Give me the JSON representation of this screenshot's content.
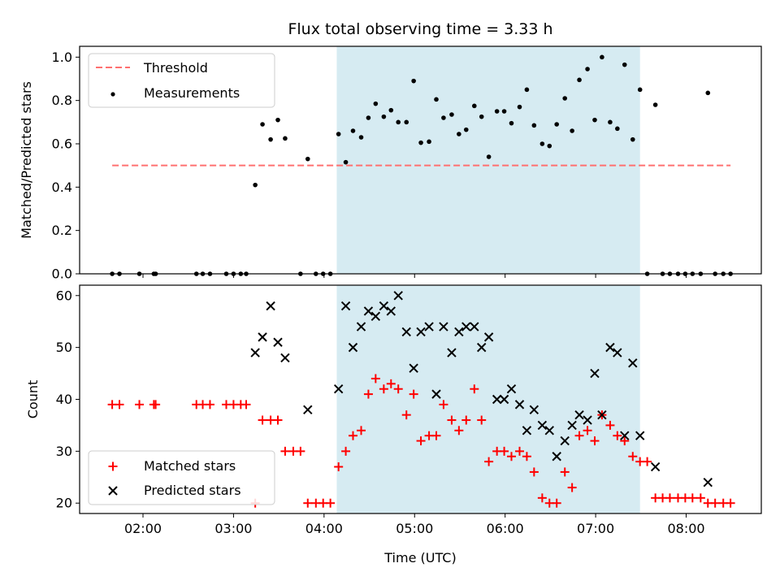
{
  "chart_data": [
    {
      "type": "scatter",
      "title": "Flux total observing time = 3.33 h",
      "xlabel": "",
      "ylabel": "Matched/Predicted stars",
      "ylim": [
        0,
        1.05
      ],
      "yticks": [
        "0.0",
        "0.2",
        "0.4",
        "0.6",
        "0.8",
        "1.0"
      ],
      "ytick_values": [
        0,
        0.2,
        0.4,
        0.6,
        0.8,
        1.0
      ],
      "xlim": [
        1.3,
        8.83
      ],
      "shaded_region": {
        "x_start": 4.14,
        "x_end": 7.49,
        "color": "#add8e6"
      },
      "threshold": {
        "name": "Threshold",
        "value": 0.5,
        "x_start": 1.66,
        "x_end": 8.49,
        "color": "#ff7070"
      },
      "legend_position": "upper-left",
      "series": [
        {
          "name": "Measurements",
          "color": "#000000",
          "points": [
            [
              1.66,
              0
            ],
            [
              1.74,
              0
            ],
            [
              1.96,
              0
            ],
            [
              2.12,
              0
            ],
            [
              2.14,
              0
            ],
            [
              2.59,
              0
            ],
            [
              2.66,
              0
            ],
            [
              2.74,
              0
            ],
            [
              2.92,
              0
            ],
            [
              3.0,
              0
            ],
            [
              3.08,
              0
            ],
            [
              3.14,
              0
            ],
            [
              3.24,
              0.41
            ],
            [
              3.32,
              0.69
            ],
            [
              3.41,
              0.62
            ],
            [
              3.49,
              0.71
            ],
            [
              3.57,
              0.625
            ],
            [
              3.74,
              0
            ],
            [
              3.82,
              0.53
            ],
            [
              3.91,
              0
            ],
            [
              3.99,
              0
            ],
            [
              4.07,
              0
            ],
            [
              4.16,
              0.645
            ],
            [
              4.24,
              0.515
            ],
            [
              4.32,
              0.66
            ],
            [
              4.41,
              0.63
            ],
            [
              4.49,
              0.72
            ],
            [
              4.57,
              0.785
            ],
            [
              4.66,
              0.725
            ],
            [
              4.74,
              0.755
            ],
            [
              4.82,
              0.7
            ],
            [
              4.91,
              0.7
            ],
            [
              4.99,
              0.89
            ],
            [
              5.07,
              0.605
            ],
            [
              5.16,
              0.61
            ],
            [
              5.24,
              0.805
            ],
            [
              5.32,
              0.72
            ],
            [
              5.41,
              0.735
            ],
            [
              5.49,
              0.645
            ],
            [
              5.57,
              0.665
            ],
            [
              5.66,
              0.775
            ],
            [
              5.74,
              0.725
            ],
            [
              5.82,
              0.54
            ],
            [
              5.91,
              0.75
            ],
            [
              5.99,
              0.75
            ],
            [
              6.07,
              0.695
            ],
            [
              6.16,
              0.77
            ],
            [
              6.24,
              0.85
            ],
            [
              6.32,
              0.685
            ],
            [
              6.41,
              0.6
            ],
            [
              6.49,
              0.59
            ],
            [
              6.57,
              0.69
            ],
            [
              6.66,
              0.81
            ],
            [
              6.74,
              0.66
            ],
            [
              6.82,
              0.895
            ],
            [
              6.91,
              0.945
            ],
            [
              6.99,
              0.71
            ],
            [
              7.07,
              1.0
            ],
            [
              7.16,
              0.7
            ],
            [
              7.24,
              0.67
            ],
            [
              7.32,
              0.965
            ],
            [
              7.41,
              0.62
            ],
            [
              7.49,
              0.85
            ],
            [
              7.57,
              0
            ],
            [
              7.66,
              0.78
            ],
            [
              7.74,
              0
            ],
            [
              7.82,
              0
            ],
            [
              7.91,
              0
            ],
            [
              7.99,
              0
            ],
            [
              8.07,
              0
            ],
            [
              8.16,
              0
            ],
            [
              8.24,
              0.835
            ],
            [
              8.32,
              0
            ],
            [
              8.41,
              0
            ],
            [
              8.49,
              0
            ]
          ]
        }
      ]
    },
    {
      "type": "scatter",
      "title": "",
      "xlabel": "Time (UTC)",
      "ylabel": "Count",
      "ylim": [
        18,
        62
      ],
      "yticks": [
        "20",
        "30",
        "40",
        "50",
        "60"
      ],
      "ytick_values": [
        20,
        30,
        40,
        50,
        60
      ],
      "xlim": [
        1.3,
        8.83
      ],
      "xticks": [
        "02:00",
        "03:00",
        "04:00",
        "05:00",
        "06:00",
        "07:00",
        "08:00"
      ],
      "xtick_values": [
        2,
        3,
        4,
        5,
        6,
        7,
        8
      ],
      "shaded_region": {
        "x_start": 4.14,
        "x_end": 7.49,
        "color": "#add8e6"
      },
      "legend_position": "lower-left",
      "series": [
        {
          "name": "Matched stars",
          "marker": "plus",
          "color": "#ff0000",
          "points": [
            [
              1.66,
              39
            ],
            [
              1.74,
              39
            ],
            [
              1.96,
              39
            ],
            [
              2.12,
              39
            ],
            [
              2.14,
              39
            ],
            [
              2.59,
              39
            ],
            [
              2.66,
              39
            ],
            [
              2.74,
              39
            ],
            [
              2.92,
              39
            ],
            [
              3.0,
              39
            ],
            [
              3.08,
              39
            ],
            [
              3.14,
              39
            ],
            [
              3.24,
              20
            ],
            [
              3.32,
              36
            ],
            [
              3.41,
              36
            ],
            [
              3.49,
              36
            ],
            [
              3.57,
              30
            ],
            [
              3.66,
              30
            ],
            [
              3.74,
              30
            ],
            [
              3.82,
              20
            ],
            [
              3.91,
              20
            ],
            [
              3.99,
              20
            ],
            [
              4.07,
              20
            ],
            [
              4.16,
              27
            ],
            [
              4.24,
              30
            ],
            [
              4.32,
              33
            ],
            [
              4.41,
              34
            ],
            [
              4.49,
              41
            ],
            [
              4.57,
              44
            ],
            [
              4.66,
              42
            ],
            [
              4.74,
              43
            ],
            [
              4.82,
              42
            ],
            [
              4.91,
              37
            ],
            [
              4.99,
              41
            ],
            [
              5.07,
              32
            ],
            [
              5.16,
              33
            ],
            [
              5.24,
              33
            ],
            [
              5.32,
              39
            ],
            [
              5.41,
              36
            ],
            [
              5.49,
              34
            ],
            [
              5.57,
              36
            ],
            [
              5.66,
              42
            ],
            [
              5.74,
              36
            ],
            [
              5.82,
              28
            ],
            [
              5.91,
              30
            ],
            [
              5.99,
              30
            ],
            [
              6.07,
              29
            ],
            [
              6.16,
              30
            ],
            [
              6.24,
              29
            ],
            [
              6.32,
              26
            ],
            [
              6.41,
              21
            ],
            [
              6.49,
              20
            ],
            [
              6.57,
              20
            ],
            [
              6.66,
              26
            ],
            [
              6.74,
              23
            ],
            [
              6.82,
              33
            ],
            [
              6.91,
              34
            ],
            [
              6.99,
              32
            ],
            [
              7.07,
              37
            ],
            [
              7.16,
              35
            ],
            [
              7.24,
              33
            ],
            [
              7.32,
              32
            ],
            [
              7.41,
              29
            ],
            [
              7.49,
              28
            ],
            [
              7.57,
              28
            ],
            [
              7.66,
              21
            ],
            [
              7.74,
              21
            ],
            [
              7.82,
              21
            ],
            [
              7.91,
              21
            ],
            [
              7.99,
              21
            ],
            [
              8.07,
              21
            ],
            [
              8.16,
              21
            ],
            [
              8.24,
              20
            ],
            [
              8.32,
              20
            ],
            [
              8.41,
              20
            ],
            [
              8.49,
              20
            ]
          ]
        },
        {
          "name": "Predicted stars",
          "marker": "x",
          "color": "#000000",
          "points": [
            [
              3.24,
              49
            ],
            [
              3.32,
              52
            ],
            [
              3.41,
              58
            ],
            [
              3.49,
              51
            ],
            [
              3.57,
              48
            ],
            [
              3.82,
              38
            ],
            [
              4.16,
              42
            ],
            [
              4.24,
              58
            ],
            [
              4.32,
              50
            ],
            [
              4.41,
              54
            ],
            [
              4.49,
              57
            ],
            [
              4.57,
              56
            ],
            [
              4.66,
              58
            ],
            [
              4.74,
              57
            ],
            [
              4.82,
              60
            ],
            [
              4.91,
              53
            ],
            [
              4.99,
              46
            ],
            [
              5.07,
              53
            ],
            [
              5.16,
              54
            ],
            [
              5.24,
              41
            ],
            [
              5.32,
              54
            ],
            [
              5.41,
              49
            ],
            [
              5.49,
              53
            ],
            [
              5.57,
              54
            ],
            [
              5.66,
              54
            ],
            [
              5.74,
              50
            ],
            [
              5.82,
              52
            ],
            [
              5.91,
              40
            ],
            [
              5.99,
              40
            ],
            [
              6.07,
              42
            ],
            [
              6.16,
              39
            ],
            [
              6.24,
              34
            ],
            [
              6.32,
              38
            ],
            [
              6.41,
              35
            ],
            [
              6.49,
              34
            ],
            [
              6.57,
              29
            ],
            [
              6.66,
              32
            ],
            [
              6.74,
              35
            ],
            [
              6.82,
              37
            ],
            [
              6.91,
              36
            ],
            [
              6.99,
              45
            ],
            [
              7.07,
              37
            ],
            [
              7.16,
              50
            ],
            [
              7.24,
              49
            ],
            [
              7.32,
              33
            ],
            [
              7.41,
              47
            ],
            [
              7.49,
              33
            ],
            [
              7.66,
              27
            ],
            [
              8.24,
              24
            ]
          ]
        }
      ]
    }
  ]
}
